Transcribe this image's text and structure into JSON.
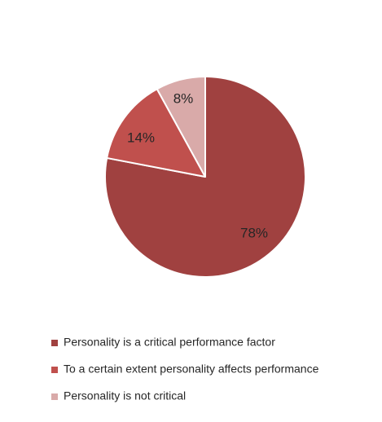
{
  "chart_data": {
    "type": "pie",
    "title": "",
    "categories": [
      "Personality is a critical performance factor",
      "To a certain extent personality affects performance",
      "Personality is not critical"
    ],
    "values": [
      78,
      14,
      8
    ],
    "value_labels": [
      "78%",
      "14%",
      "8%"
    ],
    "colors": [
      "#a04140",
      "#c0504d",
      "#d9aaa9"
    ],
    "start_angle_deg": 0,
    "direction": "clockwise",
    "legend_position": "bottom"
  }
}
